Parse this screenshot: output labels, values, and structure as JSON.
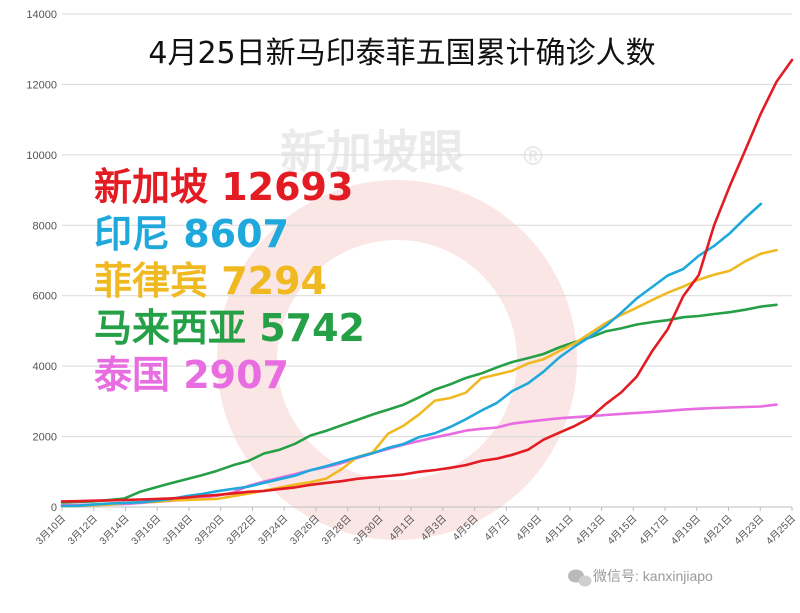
{
  "chart_data": {
    "type": "line",
    "title": "4月25日新马印泰菲五国累计确诊人数",
    "ylim": [
      0,
      14000
    ],
    "yticks": [
      0,
      2000,
      4000,
      6000,
      8000,
      10000,
      12000,
      14000
    ],
    "x_start": "3月10日",
    "x_end": "4月25日",
    "xtick_labels": [
      "3月10日",
      "3月12日",
      "3月14日",
      "3月16日",
      "3月18日",
      "3月20日",
      "3月22日",
      "3月24日",
      "3月26日",
      "3月28日",
      "3月30日",
      "4月1日",
      "4月3日",
      "4月5日",
      "4月7日",
      "4月9日",
      "4月11日",
      "4月13日",
      "4月15日",
      "4月17日",
      "4月19日",
      "4月21日",
      "4月23日",
      "4月25日"
    ],
    "grid": "horizontal",
    "series": [
      {
        "name": "新加坡",
        "color": "#e31b23",
        "values": [
          160,
          166,
          178,
          187,
          200,
          212,
          226,
          243,
          266,
          313,
          345,
          385,
          432,
          455,
          509,
          558,
          631,
          683,
          732,
          802,
          844,
          879,
          926,
          1000,
          1049,
          1114,
          1189,
          1309,
          1375,
          1481,
          1623,
          1910,
          2108,
          2299,
          2532,
          2918,
          3252,
          3699,
          4427,
          5050,
          5992,
          6588,
          8014,
          9125,
          10141,
          11178,
          12075,
          12693
        ]
      },
      {
        "name": "印尼",
        "color": "#1ea8dc",
        "values": [
          27,
          34,
          69,
          96,
          117,
          134,
          172,
          227,
          309,
          369,
          450,
          514,
          579,
          686,
          790,
          893,
          1046,
          1155,
          1285,
          1414,
          1528,
          1677,
          1790,
          1986,
          2092,
          2273,
          2491,
          2738,
          2956,
          3293,
          3512,
          3842,
          4241,
          4557,
          4839,
          5136,
          5516,
          5923,
          6248,
          6575,
          6760,
          7135,
          7418,
          7775,
          8211,
          8607
        ]
      },
      {
        "name": "菲律宾",
        "color": "#f0b922",
        "values": [
          24,
          33,
          52,
          64,
          111,
          140,
          142,
          187,
          202,
          217,
          230,
          307,
          380,
          462,
          552,
          636,
          707,
          803,
          1075,
          1418,
          1546,
          2084,
          2311,
          2633,
          3018,
          3094,
          3246,
          3660,
          3764,
          3870,
          4076,
          4195,
          4428,
          4648,
          4932,
          5223,
          5453,
          5660,
          5878,
          6087,
          6259,
          6459,
          6599,
          6710,
          6981,
          7192,
          7294
        ]
      },
      {
        "name": "马来西亚",
        "color": "#25a046",
        "values": [
          129,
          149,
          158,
          197,
          238,
          428,
          553,
          673,
          790,
          900,
          1030,
          1183,
          1306,
          1518,
          1624,
          1796,
          2031,
          2161,
          2320,
          2470,
          2626,
          2766,
          2908,
          3116,
          3333,
          3483,
          3662,
          3793,
          3963,
          4119,
          4228,
          4346,
          4530,
          4683,
          4817,
          4987,
          5072,
          5182,
          5251,
          5305,
          5389,
          5425,
          5482,
          5532,
          5603,
          5691,
          5742
        ]
      },
      {
        "name": "泰国",
        "color": "#e86de0",
        "values": [
          53,
          59,
          70,
          75,
          82,
          114,
          147,
          177,
          212,
          272,
          322,
          411,
          599,
          721,
          827,
          934,
          1045,
          1136,
          1245,
          1388,
          1524,
          1651,
          1771,
          1875,
          1978,
          2067,
          2169,
          2220,
          2258,
          2369,
          2423,
          2473,
          2518,
          2551,
          2579,
          2613,
          2643,
          2672,
          2700,
          2733,
          2765,
          2792,
          2811,
          2826,
          2839,
          2854,
          2907
        ]
      }
    ],
    "legend": {
      "placement": "left",
      "values": [
        "12693",
        "8607",
        "7294",
        "5742",
        "2907"
      ]
    }
  },
  "watermark": {
    "text": "新加坡眼",
    "registered": "®"
  },
  "footer": {
    "icon": "wechat-icon",
    "text": "微信号: kanxinjiapo"
  }
}
